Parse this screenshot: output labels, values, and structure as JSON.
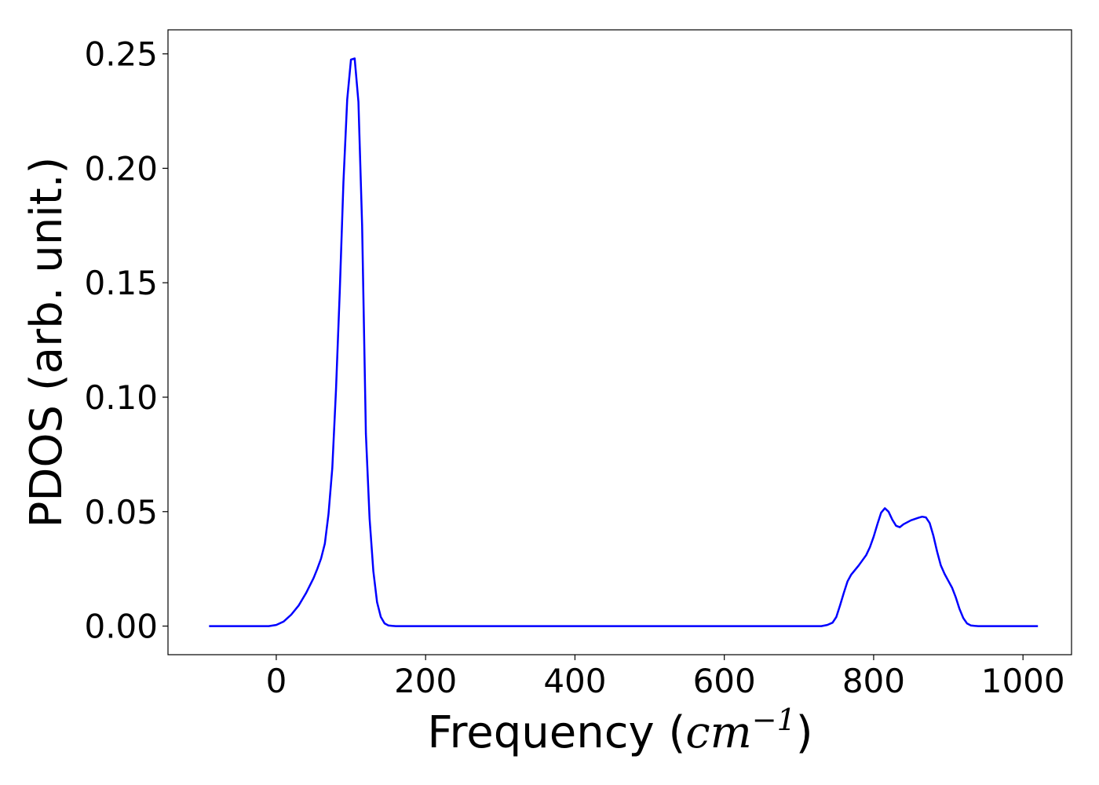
{
  "chart_data": {
    "type": "line",
    "xlabel": "Frequency (",
    "xlabel_unit_base": "cm",
    "xlabel_unit_exponent": "−1",
    "xlabel_close": ")",
    "ylabel": "PDOS (arb. unit.)",
    "xlim": [
      -145,
      1065
    ],
    "ylim": [
      -0.0125,
      0.2605
    ],
    "xticks": [
      0,
      200,
      400,
      600,
      800,
      1000
    ],
    "xtick_labels": [
      "0",
      "200",
      "400",
      "600",
      "800",
      "1000"
    ],
    "yticks": [
      0.0,
      0.05,
      0.1,
      0.15,
      0.2,
      0.25
    ],
    "ytick_labels": [
      "0.00",
      "0.05",
      "0.10",
      "0.15",
      "0.20",
      "0.25"
    ],
    "grid": false,
    "series": [
      {
        "color": "#0000ff",
        "x": [
          -90,
          -10,
          0,
          10,
          20,
          30,
          40,
          50,
          55,
          60,
          65,
          70,
          75,
          80,
          85,
          90,
          95,
          100,
          105,
          110,
          115,
          120,
          125,
          130,
          135,
          140,
          145,
          150,
          155,
          160,
          170,
          200,
          400,
          600,
          730,
          738,
          745,
          750,
          755,
          760,
          765,
          770,
          780,
          790,
          795,
          800,
          805,
          810,
          815,
          820,
          825,
          830,
          835,
          840,
          850,
          860,
          865,
          870,
          875,
          880,
          885,
          890,
          895,
          900,
          905,
          910,
          915,
          920,
          925,
          930,
          935,
          940,
          945,
          950,
          1020
        ],
        "y": [
          0.0,
          0.0,
          0.0005,
          0.002,
          0.005,
          0.009,
          0.0145,
          0.021,
          0.025,
          0.0295,
          0.036,
          0.049,
          0.069,
          0.103,
          0.146,
          0.194,
          0.23,
          0.2475,
          0.248,
          0.229,
          0.175,
          0.084,
          0.047,
          0.024,
          0.0105,
          0.004,
          0.0012,
          0.0003,
          0.0001,
          0.0,
          0.0,
          0.0,
          0.0,
          0.0,
          0.0,
          0.0005,
          0.0015,
          0.004,
          0.009,
          0.0145,
          0.0195,
          0.0225,
          0.0265,
          0.031,
          0.0345,
          0.039,
          0.0445,
          0.0495,
          0.0515,
          0.05,
          0.0465,
          0.0438,
          0.0432,
          0.0445,
          0.0462,
          0.0473,
          0.0478,
          0.0475,
          0.045,
          0.0395,
          0.0325,
          0.0265,
          0.0228,
          0.0198,
          0.0168,
          0.0125,
          0.0075,
          0.0035,
          0.0012,
          0.0003,
          0.0001,
          0.0,
          0.0,
          0.0,
          0.0
        ]
      }
    ]
  }
}
